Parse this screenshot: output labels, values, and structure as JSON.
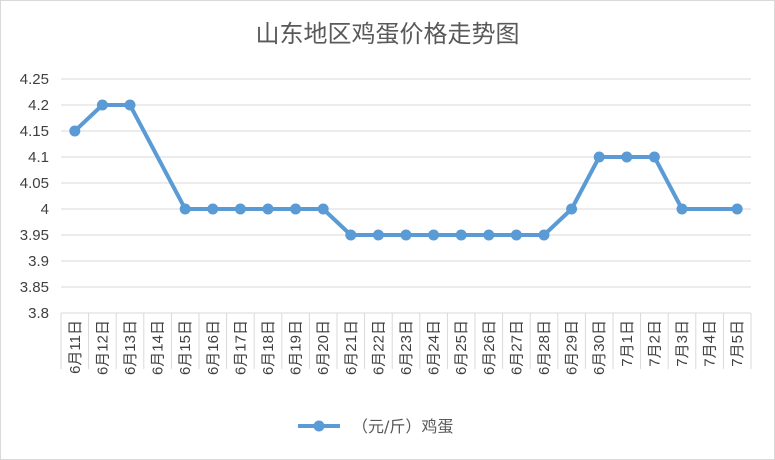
{
  "chart_data": {
    "type": "line",
    "title": "山东地区鸡蛋价格走势图",
    "xlabel": "",
    "ylabel": "",
    "categories": [
      "6月11日",
      "6月12日",
      "6月13日",
      "6月14日",
      "6月15日",
      "6月16日",
      "6月17日",
      "6月18日",
      "6月19日",
      "6月20日",
      "6月21日",
      "6月22日",
      "6月23日",
      "6月24日",
      "6月25日",
      "6月26日",
      "6月27日",
      "6月28日",
      "6月29日",
      "6月30日",
      "7月1日",
      "7月2日",
      "7月3日",
      "7月4日",
      "7月5日"
    ],
    "series": [
      {
        "name": "（元/斤）鸡蛋",
        "values": [
          4.15,
          4.2,
          4.2,
          null,
          4.0,
          4.0,
          4.0,
          4.0,
          4.0,
          4.0,
          3.95,
          3.95,
          3.95,
          3.95,
          3.95,
          3.95,
          3.95,
          3.95,
          4.0,
          4.1,
          4.1,
          4.1,
          4.0,
          null,
          4.0
        ]
      }
    ],
    "ylim": [
      3.8,
      4.25
    ],
    "yticks": [
      "4.25",
      "4.2",
      "4.15",
      "4.1",
      "4.05",
      "4",
      "3.95",
      "3.9",
      "3.85",
      "3.8"
    ],
    "grid": true,
    "legend_position": "bottom",
    "line_color": "#5b9bd5"
  }
}
